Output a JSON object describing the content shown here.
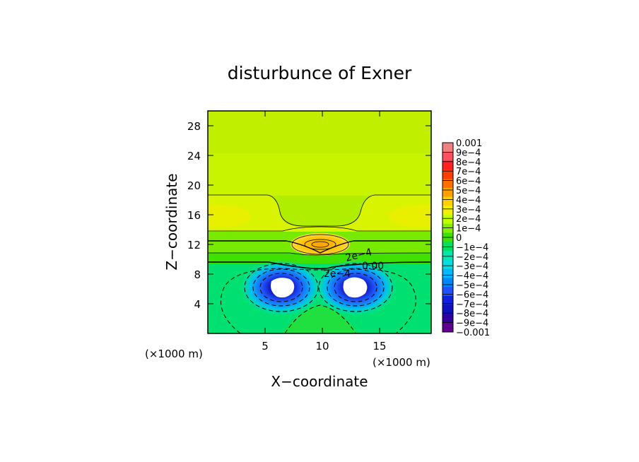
{
  "chart_data": {
    "type": "heatmap",
    "subtype": "filled-contour",
    "title": "disturbunce of Exner",
    "xlabel": "X−coordinate",
    "ylabel": "Z−coordinate",
    "x_unit_note": "(×1000 m)",
    "y_unit_note": "(×1000 m)",
    "xlim": [
      0,
      19.5
    ],
    "ylim": [
      0,
      30
    ],
    "x_ticks": [
      5,
      10,
      15
    ],
    "y_ticks": [
      4,
      8,
      12,
      16,
      20,
      24,
      28
    ],
    "colorbar": {
      "labels": [
        "0.001",
        "9e−4",
        "8e−4",
        "7e−4",
        "6e−4",
        "5e−4",
        "4e−4",
        "3e−4",
        "2e−4",
        "1e−4",
        "0",
        "−1e−4",
        "−2e−4",
        "−3e−4",
        "−4e−4",
        "−5e−4",
        "−6e−4",
        "−7e−4",
        "−8e−4",
        "−9e−4",
        "−0.001"
      ],
      "colors": [
        "#f08080",
        "#ff5060",
        "#ff2020",
        "#ff3c00",
        "#ff6e00",
        "#ffa000",
        "#ffd000",
        "#f0f000",
        "#c0ff00",
        "#80f000",
        "#40e000",
        "#00e060",
        "#00e8b0",
        "#00e0e0",
        "#00b8ff",
        "#0088ff",
        "#2050ff",
        "#1020e0",
        "#1010c0",
        "#3000a0",
        "#600090"
      ]
    },
    "contour_labels": [
      "2e−4",
      "0.00",
      "2e−4"
    ],
    "features": [
      {
        "name": "positive maximum",
        "x": 10,
        "z": 12,
        "value": 0.0005
      },
      {
        "name": "negative minimum (left)",
        "x": 6.5,
        "z": 6.5,
        "value": -0.001
      },
      {
        "name": "negative minimum (right)",
        "x": 13.3,
        "z": 6.5,
        "value": -0.001
      }
    ]
  }
}
